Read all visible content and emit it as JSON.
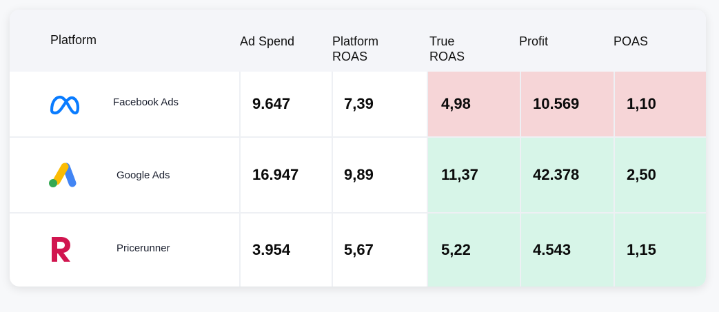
{
  "headers": {
    "platform": "Platform",
    "ad_spend": "Ad Spend",
    "platform_roas_1": "Platform",
    "platform_roas_2": "ROAS",
    "true_roas_1": "True",
    "true_roas_2": "ROAS",
    "profit": "Profit",
    "poas": "POAS"
  },
  "rows": [
    {
      "icon": "meta-logo-icon",
      "name": "Facebook Ads",
      "ad_spend": "9.647",
      "platform_roas": "7,39",
      "true_roas": "4,98",
      "profit": "10.569",
      "poas": "1,10",
      "status_color": "#f6d5d7"
    },
    {
      "icon": "google-ads-logo-icon",
      "name": "Google Ads",
      "ad_spend": "16.947",
      "platform_roas": "9,89",
      "true_roas": "11,37",
      "profit": "42.378",
      "poas": "2,50",
      "status_color": "#d7f5e8"
    },
    {
      "icon": "pricerunner-logo-icon",
      "name": "Pricerunner",
      "ad_spend": "3.954",
      "platform_roas": "5,67",
      "true_roas": "5,22",
      "profit": "4.543",
      "poas": "1,15",
      "status_color": "#d7f5e8"
    }
  ],
  "colors": {
    "negative": "#f6d5d7",
    "positive": "#d7f5e8",
    "meta_blue": "#0a7cff",
    "pricerunner_red": "#d1154f"
  }
}
